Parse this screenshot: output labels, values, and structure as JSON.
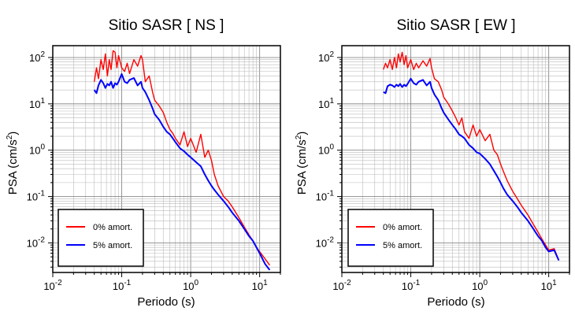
{
  "colors": {
    "undamped": "#ff0000",
    "damped": "#0000ff"
  },
  "chart_data": [
    {
      "type": "line",
      "title": "Sitio SASR [ NS ]",
      "xlabel": "Periodo (s)",
      "ylabel": "PSA (cm/s2)",
      "ylabel_parts": {
        "base": "PSA (cm/s",
        "exp": "2",
        "close": ")"
      },
      "xscale": "log",
      "yscale": "log",
      "xlim": [
        0.01,
        20
      ],
      "ylim": [
        0.0023,
        180
      ],
      "xticks": [
        {
          "base": "10",
          "exp": "-2",
          "value": 0.01
        },
        {
          "base": "10",
          "exp": "-1",
          "value": 0.1
        },
        {
          "base": "10",
          "exp": "0",
          "value": 1
        },
        {
          "base": "10",
          "exp": "1",
          "value": 10
        }
      ],
      "yticks": [
        {
          "base": "10",
          "exp": "-2",
          "value": 0.01
        },
        {
          "base": "10",
          "exp": "-1",
          "value": 0.1
        },
        {
          "base": "10",
          "exp": "0",
          "value": 1
        },
        {
          "base": "10",
          "exp": "1",
          "value": 10
        },
        {
          "base": "10",
          "exp": "2",
          "value": 100
        }
      ],
      "grid": true,
      "legend_position": "bottom-left",
      "series": [
        {
          "name": "0% amort.",
          "color": "#ff0000",
          "x": [
            0.04,
            0.043,
            0.046,
            0.05,
            0.054,
            0.058,
            0.062,
            0.066,
            0.07,
            0.075,
            0.08,
            0.085,
            0.09,
            0.1,
            0.11,
            0.12,
            0.13,
            0.15,
            0.17,
            0.19,
            0.2,
            0.22,
            0.25,
            0.28,
            0.3,
            0.35,
            0.4,
            0.45,
            0.5,
            0.55,
            0.6,
            0.7,
            0.8,
            0.9,
            1.0,
            1.2,
            1.4,
            1.6,
            1.8,
            2.0,
            2.2,
            2.5,
            3.0,
            3.5,
            4.0,
            5.0,
            6.0,
            7.0,
            8.0,
            9.0,
            10.0,
            12.0,
            14.0
          ],
          "y": [
            30,
            60,
            35,
            90,
            55,
            120,
            40,
            90,
            55,
            140,
            130,
            60,
            110,
            60,
            50,
            75,
            45,
            90,
            65,
            110,
            90,
            30,
            40,
            18,
            12,
            9,
            6.5,
            4,
            2.8,
            2.3,
            1.8,
            1.3,
            2.5,
            1.2,
            1.8,
            0.9,
            2.2,
            0.7,
            1.0,
            0.6,
            0.3,
            0.17,
            0.1,
            0.08,
            0.06,
            0.035,
            0.022,
            0.015,
            0.011,
            0.008,
            0.0065,
            0.0045,
            0.0033
          ]
        },
        {
          "name": "5% amort.",
          "color": "#0000ff",
          "x": [
            0.04,
            0.043,
            0.046,
            0.05,
            0.054,
            0.058,
            0.062,
            0.066,
            0.07,
            0.075,
            0.08,
            0.085,
            0.09,
            0.1,
            0.11,
            0.12,
            0.13,
            0.15,
            0.17,
            0.19,
            0.2,
            0.22,
            0.25,
            0.28,
            0.3,
            0.35,
            0.4,
            0.45,
            0.5,
            0.55,
            0.6,
            0.7,
            0.8,
            0.9,
            1.0,
            1.2,
            1.4,
            1.6,
            1.8,
            2.0,
            2.2,
            2.5,
            3.0,
            3.5,
            4.0,
            5.0,
            6.0,
            7.0,
            8.0,
            9.0,
            10.0,
            12.0,
            14.0
          ],
          "y": [
            20,
            17,
            25,
            33,
            28,
            22,
            27,
            25,
            30,
            22,
            28,
            26,
            30,
            44,
            30,
            28,
            33,
            36,
            25,
            30,
            22,
            18,
            12,
            8,
            6,
            4.5,
            3.2,
            2.5,
            2.2,
            1.8,
            1.5,
            1.1,
            0.95,
            0.8,
            0.7,
            0.55,
            0.45,
            0.3,
            0.22,
            0.17,
            0.14,
            0.11,
            0.08,
            0.06,
            0.045,
            0.03,
            0.02,
            0.014,
            0.011,
            0.008,
            0.006,
            0.0035,
            0.0026
          ]
        }
      ]
    },
    {
      "type": "line",
      "title": "Sitio SASR [ EW ]",
      "xlabel": "Periodo (s)",
      "ylabel": "PSA (cm/s2)",
      "ylabel_parts": {
        "base": "PSA (cm/s",
        "exp": "2",
        "close": ")"
      },
      "xscale": "log",
      "yscale": "log",
      "xlim": [
        0.01,
        20
      ],
      "ylim": [
        0.0023,
        180
      ],
      "xticks": [
        {
          "base": "10",
          "exp": "-2",
          "value": 0.01
        },
        {
          "base": "10",
          "exp": "-1",
          "value": 0.1
        },
        {
          "base": "10",
          "exp": "0",
          "value": 1
        },
        {
          "base": "10",
          "exp": "1",
          "value": 10
        }
      ],
      "yticks": [
        {
          "base": "10",
          "exp": "-2",
          "value": 0.01
        },
        {
          "base": "10",
          "exp": "-1",
          "value": 0.1
        },
        {
          "base": "10",
          "exp": "0",
          "value": 1
        },
        {
          "base": "10",
          "exp": "1",
          "value": 10
        },
        {
          "base": "10",
          "exp": "2",
          "value": 100
        }
      ],
      "grid": true,
      "legend_position": "bottom-left",
      "series": [
        {
          "name": "0% amort.",
          "color": "#ff0000",
          "x": [
            0.04,
            0.043,
            0.046,
            0.05,
            0.054,
            0.058,
            0.062,
            0.066,
            0.07,
            0.075,
            0.08,
            0.085,
            0.09,
            0.1,
            0.11,
            0.12,
            0.13,
            0.15,
            0.17,
            0.19,
            0.2,
            0.22,
            0.25,
            0.28,
            0.3,
            0.35,
            0.4,
            0.45,
            0.5,
            0.55,
            0.6,
            0.7,
            0.8,
            0.9,
            1.0,
            1.2,
            1.4,
            1.6,
            1.8,
            2.0,
            2.2,
            2.5,
            3.0,
            3.5,
            4.0,
            5.0,
            6.0,
            7.0,
            8.0,
            9.0,
            10.0,
            12.0,
            14.0
          ],
          "y": [
            55,
            75,
            60,
            90,
            55,
            100,
            60,
            120,
            80,
            130,
            70,
            110,
            60,
            90,
            55,
            75,
            60,
            85,
            65,
            95,
            60,
            35,
            30,
            20,
            14,
            10,
            7,
            5,
            3.5,
            5,
            2.5,
            1.8,
            3.5,
            2,
            2.8,
            1.6,
            2.2,
            1.0,
            0.8,
            0.5,
            0.35,
            0.22,
            0.13,
            0.09,
            0.065,
            0.04,
            0.025,
            0.017,
            0.012,
            0.009,
            0.007,
            0.0075,
            0.0042
          ]
        },
        {
          "name": "5% amort.",
          "color": "#0000ff",
          "x": [
            0.04,
            0.043,
            0.046,
            0.05,
            0.054,
            0.058,
            0.062,
            0.066,
            0.07,
            0.075,
            0.08,
            0.085,
            0.09,
            0.1,
            0.11,
            0.12,
            0.13,
            0.15,
            0.17,
            0.19,
            0.2,
            0.22,
            0.25,
            0.28,
            0.3,
            0.35,
            0.4,
            0.45,
            0.5,
            0.55,
            0.6,
            0.7,
            0.8,
            0.9,
            1.0,
            1.2,
            1.4,
            1.6,
            1.8,
            2.0,
            2.2,
            2.5,
            3.0,
            3.5,
            4.0,
            5.0,
            6.0,
            7.0,
            8.0,
            9.0,
            10.0,
            12.0,
            14.0
          ],
          "y": [
            18,
            17,
            24,
            26,
            25,
            23,
            26,
            24,
            27,
            23,
            26,
            24,
            27,
            35,
            28,
            26,
            30,
            33,
            25,
            30,
            22,
            16,
            12,
            8,
            6.5,
            4.6,
            3.5,
            2.8,
            2.2,
            2.0,
            1.8,
            1.3,
            1.1,
            0.9,
            0.85,
            0.65,
            0.5,
            0.36,
            0.27,
            0.2,
            0.15,
            0.11,
            0.08,
            0.06,
            0.045,
            0.03,
            0.02,
            0.014,
            0.011,
            0.008,
            0.0065,
            0.007,
            0.0042
          ]
        }
      ]
    }
  ]
}
